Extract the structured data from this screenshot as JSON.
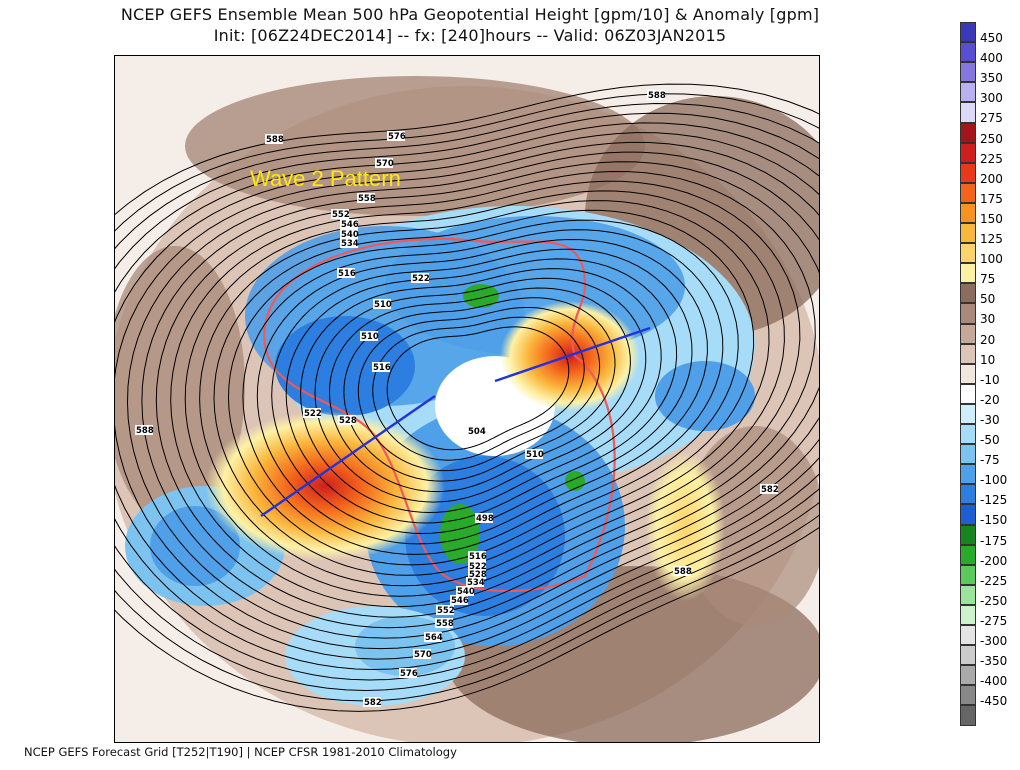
{
  "header": {
    "title_line1": "NCEP GEFS Ensemble Mean 500 hPa Geopotential Height [gpm/10] & Anomaly [gpm]",
    "title_line2": "Init: [06Z24DEC2014] -- fx: [240]hours -- Valid: 06Z03JAN2015"
  },
  "footer": {
    "text": "NCEP GEFS Forecast Grid [T252|T190] | NCEP CFSR 1981-2010 Climatology"
  },
  "annotation": {
    "text": "Wave 2 Pattern",
    "color": "#ffea00",
    "axis_line_color": "#2233dd"
  },
  "contour_labels": [
    "588",
    "576",
    "570",
    "564",
    "558",
    "552",
    "546",
    "540",
    "534",
    "528",
    "522",
    "516",
    "510",
    "504",
    "498",
    "582",
    "588",
    "588",
    "588",
    "582",
    "576",
    "570",
    "564",
    "558",
    "552",
    "546",
    "540",
    "534",
    "528",
    "522",
    "516",
    "510",
    "516",
    "528",
    "522",
    "510",
    "510"
  ],
  "colorbar": {
    "entries": [
      {
        "label": "450",
        "color": "#3a3ab8"
      },
      {
        "label": "400",
        "color": "#5a4ed0"
      },
      {
        "label": "350",
        "color": "#8577e0"
      },
      {
        "label": "300",
        "color": "#b9b0ef"
      },
      {
        "label": "275",
        "color": "#dcd9f7"
      },
      {
        "label": "250",
        "color": "#a5141a"
      },
      {
        "label": "225",
        "color": "#cf1e1e"
      },
      {
        "label": "200",
        "color": "#e83a1a"
      },
      {
        "label": "175",
        "color": "#f4651c"
      },
      {
        "label": "150",
        "color": "#f7931e"
      },
      {
        "label": "125",
        "color": "#fbb63c"
      },
      {
        "label": "100",
        "color": "#fdd46a"
      },
      {
        "label": "75",
        "color": "#fdf1a6"
      },
      {
        "label": "50",
        "color": "#8c6c5c"
      },
      {
        "label": "30",
        "color": "#a98a7a"
      },
      {
        "label": "20",
        "color": "#c4a898"
      },
      {
        "label": "10",
        "color": "#dcc4b6"
      },
      {
        "label": "-10",
        "color": "#f2e6df"
      },
      {
        "label": "-20",
        "color": "#ffffff"
      },
      {
        "label": "-30",
        "color": "#cfeefc"
      },
      {
        "label": "-50",
        "color": "#a6dcf7"
      },
      {
        "label": "-75",
        "color": "#7cc3f0"
      },
      {
        "label": "-100",
        "color": "#4fa0e8"
      },
      {
        "label": "-125",
        "color": "#2c7fe0"
      },
      {
        "label": "-150",
        "color": "#1d5fd1"
      },
      {
        "label": "-175",
        "color": "#16851f"
      },
      {
        "label": "-200",
        "color": "#2aaa2a"
      },
      {
        "label": "-225",
        "color": "#5bc95b"
      },
      {
        "label": "-250",
        "color": "#9be49b"
      },
      {
        "label": "-275",
        "color": "#cdf3cd"
      },
      {
        "label": "-300",
        "color": "#e4e4e4"
      },
      {
        "label": "-350",
        "color": "#cccccc"
      },
      {
        "label": "-400",
        "color": "#aaaaaa"
      },
      {
        "label": "-450",
        "color": "#888888"
      },
      {
        "label": "",
        "color": "#666666"
      }
    ]
  }
}
